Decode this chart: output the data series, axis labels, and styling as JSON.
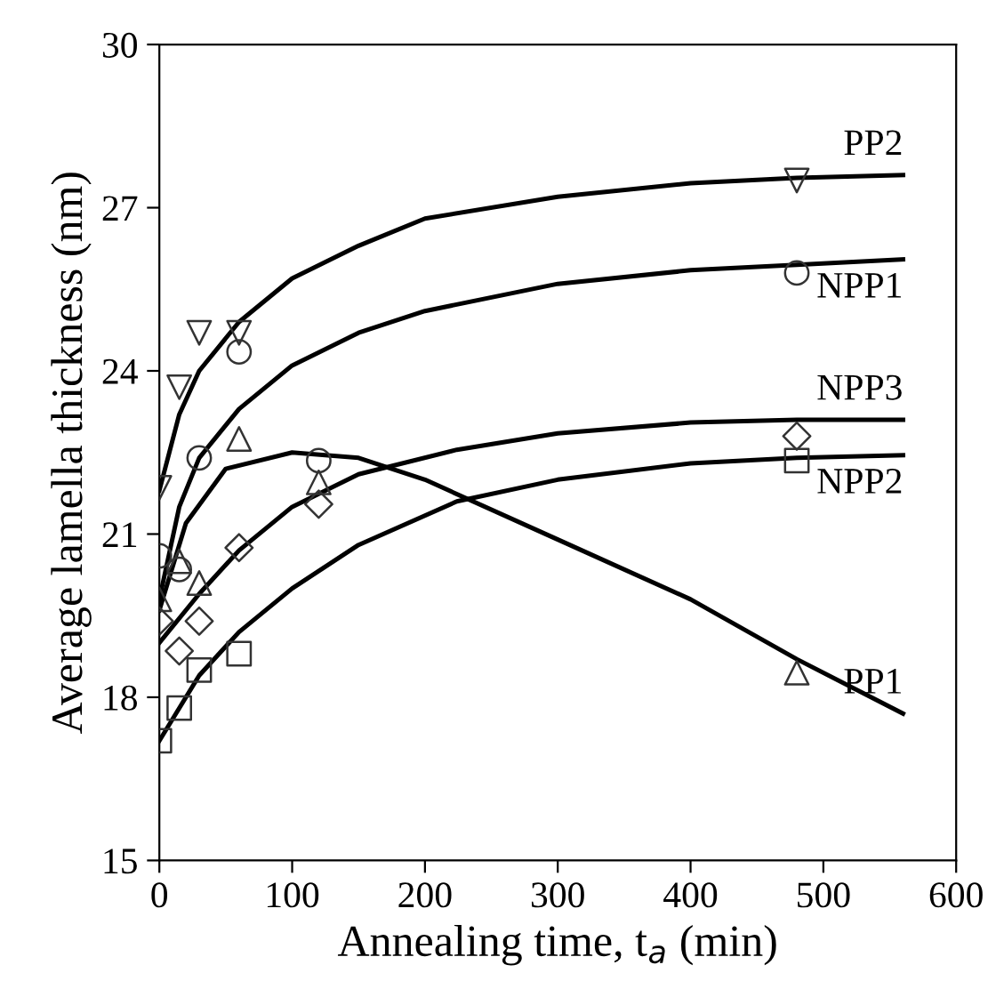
{
  "chart_data": {
    "type": "scatter",
    "xlabel": "Annealing time, t$_{a}$ (min)",
    "ylabel": "Average lamella thickness (nm)",
    "xlim": [
      0,
      600
    ],
    "ylim": [
      15,
      30
    ],
    "xticks": [
      0,
      100,
      200,
      300,
      400,
      500,
      600
    ],
    "yticks": [
      15,
      18,
      21,
      24,
      27,
      30
    ],
    "grid": false,
    "legend": false,
    "series": [
      {
        "marker": "triangle_down",
        "color": "#333333",
        "x": [
          0,
          15,
          30,
          60,
          480
        ],
        "values": [
          21.85,
          23.7,
          24.7,
          24.7,
          27.5
        ]
      },
      {
        "marker": "circle",
        "color": "#333333",
        "x": [
          0,
          15,
          30,
          60,
          120,
          480
        ],
        "values": [
          20.6,
          20.35,
          22.4,
          24.35,
          22.35,
          25.8
        ]
      },
      {
        "marker": "triangle",
        "color": "#333333",
        "x": [
          0,
          15,
          30,
          60,
          120,
          480
        ],
        "values": [
          19.8,
          20.5,
          20.1,
          22.75,
          21.95,
          18.45
        ]
      },
      {
        "marker": "diamond",
        "color": "#333333",
        "x": [
          0,
          15,
          30,
          60,
          120,
          480
        ],
        "values": [
          19.4,
          18.85,
          19.4,
          20.75,
          21.55,
          22.8
        ]
      },
      {
        "marker": "square",
        "color": "#333333",
        "x": [
          0,
          15,
          30,
          60,
          480
        ],
        "values": [
          17.2,
          17.8,
          18.5,
          18.8,
          22.35
        ]
      },
      {
        "type": "line",
        "name": "PP2",
        "color": "#000000",
        "x": [
          0,
          15,
          30,
          60,
          100,
          150,
          200,
          300,
          400,
          480,
          560
        ],
        "values": [
          21.8,
          23.2,
          24.0,
          24.9,
          25.7,
          26.3,
          26.8,
          27.2,
          27.45,
          27.55,
          27.6
        ]
      },
      {
        "type": "line",
        "name": "NPP1",
        "color": "#000000",
        "x": [
          0,
          15,
          30,
          60,
          100,
          150,
          200,
          300,
          400,
          480,
          560
        ],
        "values": [
          19.8,
          21.5,
          22.4,
          23.3,
          24.1,
          24.7,
          25.1,
          25.6,
          25.85,
          25.95,
          26.05
        ]
      },
      {
        "type": "line",
        "name": "NPP3",
        "color": "#000000",
        "x": [
          0,
          30,
          60,
          100,
          150,
          224,
          300,
          400,
          480,
          560
        ],
        "values": [
          19.0,
          19.9,
          20.7,
          21.5,
          22.1,
          22.55,
          22.85,
          23.05,
          23.1,
          23.1
        ]
      },
      {
        "type": "line",
        "name": "NPP2",
        "color": "#000000",
        "x": [
          0,
          30,
          60,
          100,
          150,
          224,
          300,
          400,
          480,
          560
        ],
        "values": [
          17.2,
          18.4,
          19.2,
          20.0,
          20.8,
          21.6,
          22.0,
          22.3,
          22.4,
          22.45
        ]
      },
      {
        "type": "line",
        "name": "PP1",
        "color": "#000000",
        "x": [
          0,
          20,
          50,
          100,
          150,
          200,
          300,
          400,
          480,
          560
        ],
        "values": [
          19.6,
          21.2,
          22.2,
          22.5,
          22.4,
          22.0,
          20.9,
          19.8,
          18.7,
          17.7
        ]
      }
    ]
  }
}
